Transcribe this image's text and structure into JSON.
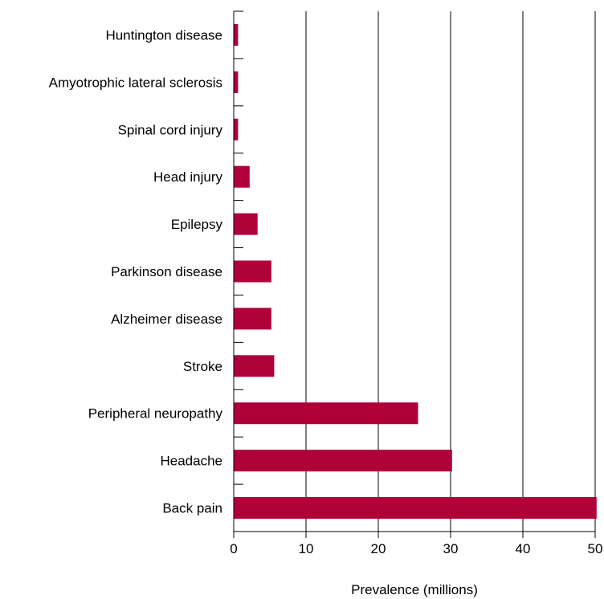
{
  "chart_data": {
    "type": "bar",
    "orientation": "horizontal",
    "categories": [
      "Huntington disease",
      "Amyotrophic lateral sclerosis",
      "Spinal cord injury",
      "Head injury",
      "Epilepsy",
      "Parkinson disease",
      "Alzheimer disease",
      "Stroke",
      "Peripheral neuropathy",
      "Headache",
      "Back pain"
    ],
    "values": [
      0.6,
      0.6,
      0.6,
      2.2,
      3.3,
      5.2,
      5.2,
      5.6,
      25.5,
      30.2,
      50.2
    ],
    "title": "",
    "xlabel": "Prevalence (millions)",
    "ylabel": "",
    "xlim": [
      0,
      50
    ],
    "x_ticks": [
      0,
      10,
      20,
      30,
      40,
      50
    ],
    "x_tick_labels": [
      "0",
      "10",
      "20",
      "30",
      "40",
      "50"
    ],
    "grid": "vertical lines at each x tick",
    "bar_color": "#b0003a",
    "grid_color": "#000000"
  }
}
